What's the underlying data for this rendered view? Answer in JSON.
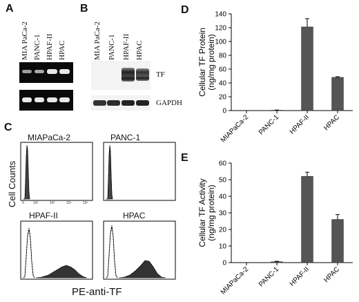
{
  "panels": {
    "A": "A",
    "B": "B",
    "C": "C",
    "D": "D",
    "E": "E"
  },
  "cell_lines_serif": [
    "MIA PaCa-2",
    "PANC-1",
    "HPAF-II",
    "HPAC"
  ],
  "blot_labels": {
    "tf": "TF",
    "gapdh": "GAPDH"
  },
  "flow": {
    "titles": [
      "MIAPaCa-2",
      "PANC-1",
      "HPAF-II",
      "HPAC"
    ],
    "ylabel": "Cell Counts",
    "xlabel": "PE-anti-TF",
    "tick_labels": [
      "0",
      "10²",
      "10³",
      "10⁴",
      "10⁵"
    ]
  },
  "chart_data": [
    {
      "type": "bar",
      "panel": "D",
      "categories": [
        "MIAPaCa-2",
        "PANC-1",
        "HPAF-II",
        "HPAC"
      ],
      "values": [
        0,
        0.5,
        121,
        48
      ],
      "errors": [
        0,
        0.3,
        12,
        1
      ],
      "ylabel": "Cellular TF Protein",
      "ylabel2": "(ng/mg protein)",
      "ylim": [
        0,
        140
      ],
      "yticks": [
        "0",
        "20",
        "40",
        "60",
        "80",
        "100",
        "120",
        "140"
      ],
      "bar_color": "#555555"
    },
    {
      "type": "bar",
      "panel": "E",
      "categories": [
        "MIAPaCa-2",
        "PANC-1",
        "HPAF-II",
        "HPAC"
      ],
      "values": [
        0,
        0.5,
        52,
        26
      ],
      "errors": [
        0,
        0.3,
        2.5,
        3
      ],
      "ylabel": "Cellular TF Activity",
      "ylabel2": "(ng/mg protein)",
      "ylim": [
        0,
        60
      ],
      "yticks": [
        "0",
        "10",
        "20",
        "30",
        "40",
        "50",
        "60"
      ],
      "bar_color": "#555555"
    }
  ]
}
